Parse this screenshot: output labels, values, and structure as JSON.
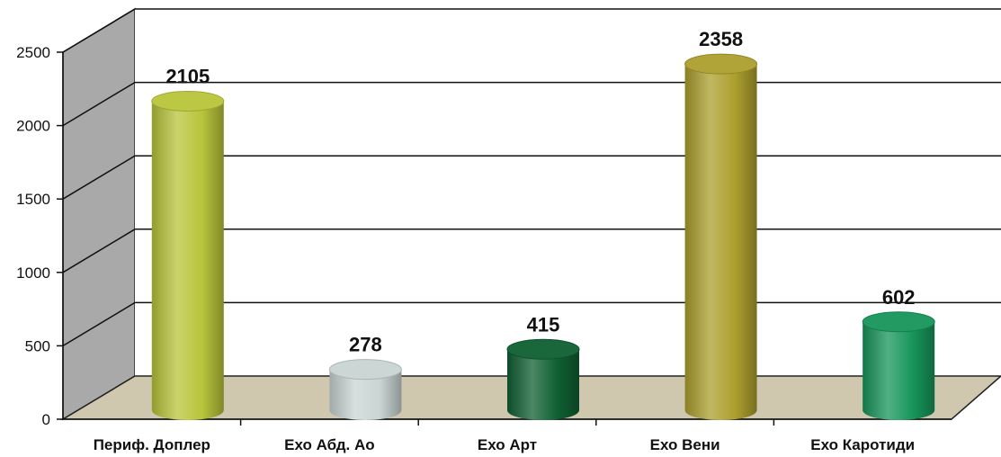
{
  "chart_data": {
    "type": "bar",
    "style": "3d-cylinder",
    "categories": [
      "Периф. Доплер",
      "Ехо Абд. Ао",
      "Ехо Арт",
      "Ехо Вени",
      "Ехо Каротиди"
    ],
    "values": [
      2105,
      278,
      415,
      2358,
      602
    ],
    "value_labels": [
      "2105",
      "278",
      "415",
      "2358",
      "602"
    ],
    "bar_colors": [
      "#b8c43a",
      "#c9d5d3",
      "#0f5f32",
      "#ac9f2d",
      "#17955a"
    ],
    "ylim": [
      0,
      2500
    ],
    "y_ticks": [
      "0",
      "500",
      "1000",
      "1500",
      "2000",
      "2500"
    ],
    "grid": true,
    "legend": "none",
    "title": "",
    "xlabel": "",
    "ylabel": ""
  }
}
